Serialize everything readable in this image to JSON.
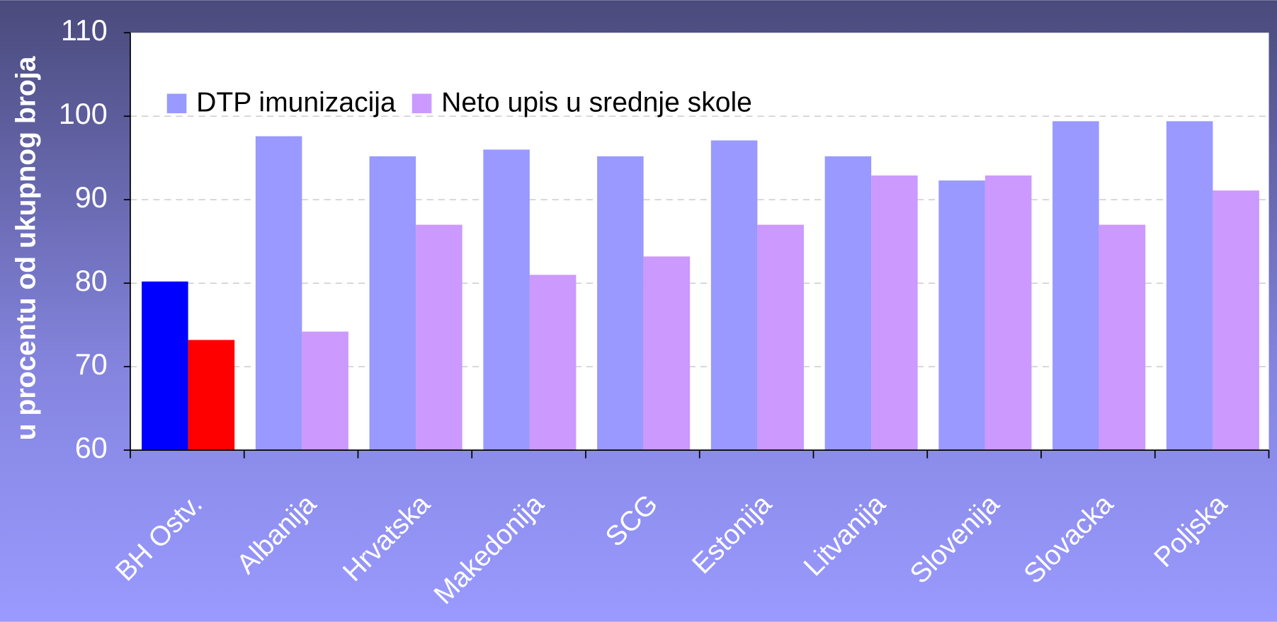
{
  "chart_data": {
    "type": "bar",
    "y_label": "u procentu od ukupnog broja",
    "categories": [
      "BH Ostv.",
      "Albanija",
      "Hrvatska",
      "Makedonija",
      "SCG",
      "Estonija",
      "Litvanija",
      "Slovenija",
      "Slovacka",
      "Poljska"
    ],
    "series": [
      {
        "name": "DTP imunizacija",
        "color": "#9999ff",
        "colors": [
          "#0000ff",
          "#9999ff",
          "#9999ff",
          "#9999ff",
          "#9999ff",
          "#9999ff",
          "#9999ff",
          "#9999ff",
          "#9999ff",
          "#9999ff"
        ],
        "values": [
          80.2,
          97.6,
          95.2,
          96,
          95.2,
          97.1,
          95.2,
          92.3,
          99.4,
          99.4
        ]
      },
      {
        "name": "Neto upis u srednje skole",
        "color": "#cc99ff",
        "colors": [
          "#ff0000",
          "#cc99ff",
          "#cc99ff",
          "#cc99ff",
          "#cc99ff",
          "#cc99ff",
          "#cc99ff",
          "#cc99ff",
          "#cc99ff",
          "#cc99ff"
        ],
        "values": [
          73.2,
          74.2,
          87,
          81,
          83.2,
          87,
          92.9,
          92.9,
          87,
          91.1
        ]
      }
    ],
    "ylim": [
      60,
      110
    ],
    "yticks": [
      60,
      70,
      80,
      90,
      100,
      110
    ],
    "grid": true,
    "legend": "top-left"
  }
}
